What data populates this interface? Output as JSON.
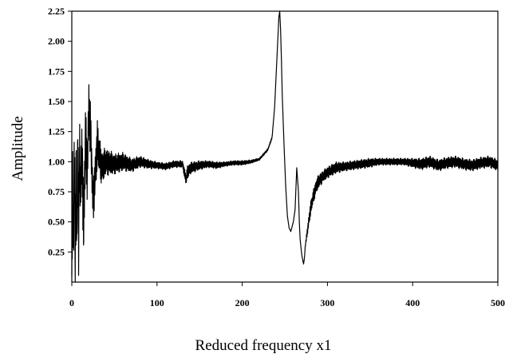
{
  "chart_data": {
    "type": "line",
    "title": "",
    "xlabel": "Reduced frequency  x1",
    "ylabel": "Amplitude",
    "xlim": [
      0,
      500
    ],
    "ylim": [
      0,
      2.25
    ],
    "grid": false,
    "legend": "none",
    "x_ticks": [
      0,
      100,
      200,
      300,
      400,
      500
    ],
    "x_tick_labels": [
      "0",
      "100",
      "200",
      "300",
      "400",
      "500"
    ],
    "y_ticks": [
      0.25,
      0.5,
      0.75,
      1.0,
      1.25,
      1.5,
      1.75,
      2.0,
      2.25
    ],
    "y_tick_labels": [
      "0.25",
      "0.50",
      "0.75",
      "1.00",
      "1.25",
      "1.50",
      "1.75",
      "2.00",
      "2.25"
    ],
    "line_color": "#000000",
    "series": [
      {
        "x": [
          0,
          1,
          2,
          3,
          4,
          5,
          6,
          7,
          8,
          9,
          10,
          12,
          14,
          16,
          18,
          20,
          22,
          25,
          30,
          35,
          40,
          50,
          60,
          70,
          80,
          90,
          100,
          110,
          120,
          130,
          134,
          136,
          140,
          150,
          160,
          170,
          180,
          190,
          200,
          210,
          220,
          225,
          230,
          235,
          238,
          241,
          243,
          244,
          245,
          246,
          247,
          249,
          251,
          253,
          255,
          257,
          260,
          262,
          264,
          266,
          267,
          268,
          270,
          272,
          273,
          274,
          276,
          278,
          280,
          283,
          287,
          290,
          295,
          300,
          305,
          310,
          320,
          330,
          340,
          350,
          360,
          370,
          380,
          390,
          400,
          410,
          420,
          430,
          440,
          450,
          460,
          470,
          480,
          490,
          500
        ],
        "y": [
          0.05,
          0.75,
          0.35,
          1.05,
          0.15,
          0.95,
          0.3,
          1.12,
          0.4,
          1.1,
          0.8,
          1.05,
          0.45,
          1.2,
          0.9,
          1.45,
          1.25,
          0.65,
          1.15,
          0.95,
          1.0,
          0.98,
          1.0,
          0.97,
          1.0,
          0.98,
          0.97,
          0.96,
          0.98,
          0.98,
          0.85,
          0.92,
          0.95,
          0.97,
          0.98,
          0.97,
          0.98,
          0.99,
          0.99,
          1.0,
          1.02,
          1.06,
          1.1,
          1.2,
          1.45,
          1.9,
          2.2,
          2.25,
          2.1,
          1.85,
          1.55,
          1.15,
          0.8,
          0.55,
          0.45,
          0.42,
          0.5,
          0.6,
          0.95,
          0.75,
          0.5,
          0.35,
          0.22,
          0.15,
          0.2,
          0.3,
          0.4,
          0.5,
          0.6,
          0.7,
          0.8,
          0.84,
          0.88,
          0.91,
          0.93,
          0.95,
          0.96,
          0.97,
          0.98,
          0.99,
          1.0,
          1.0,
          1.0,
          1.0,
          0.99,
          0.98,
          1.0,
          0.97,
          0.99,
          1.0,
          0.98,
          0.97,
          0.99,
          1.0,
          0.97
        ],
        "oscillation_amplitude": [
          0.3,
          0.4,
          0.35,
          0.45,
          0.5,
          0.45,
          0.4,
          0.4,
          0.4,
          0.35,
          0.3,
          0.3,
          0.35,
          0.3,
          0.25,
          0.25,
          0.25,
          0.2,
          0.2,
          0.15,
          0.12,
          0.09,
          0.08,
          0.06,
          0.05,
          0.04,
          0.03,
          0.03,
          0.03,
          0.03,
          0.05,
          0.06,
          0.05,
          0.04,
          0.03,
          0.03,
          0.02,
          0.02,
          0.02,
          0.015,
          0.01,
          0.01,
          0.01,
          0.01,
          0,
          0,
          0,
          0,
          0,
          0,
          0,
          0,
          0,
          0,
          0,
          0,
          0,
          0,
          0,
          0,
          0,
          0,
          0,
          0,
          0,
          0.01,
          0.03,
          0.05,
          0.06,
          0.06,
          0.06,
          0.06,
          0.05,
          0.05,
          0.05,
          0.05,
          0.04,
          0.04,
          0.04,
          0.04,
          0.03,
          0.03,
          0.03,
          0.03,
          0.04,
          0.05,
          0.05,
          0.05,
          0.05,
          0.05,
          0.05,
          0.05,
          0.05,
          0.05,
          0.05
        ]
      }
    ]
  }
}
